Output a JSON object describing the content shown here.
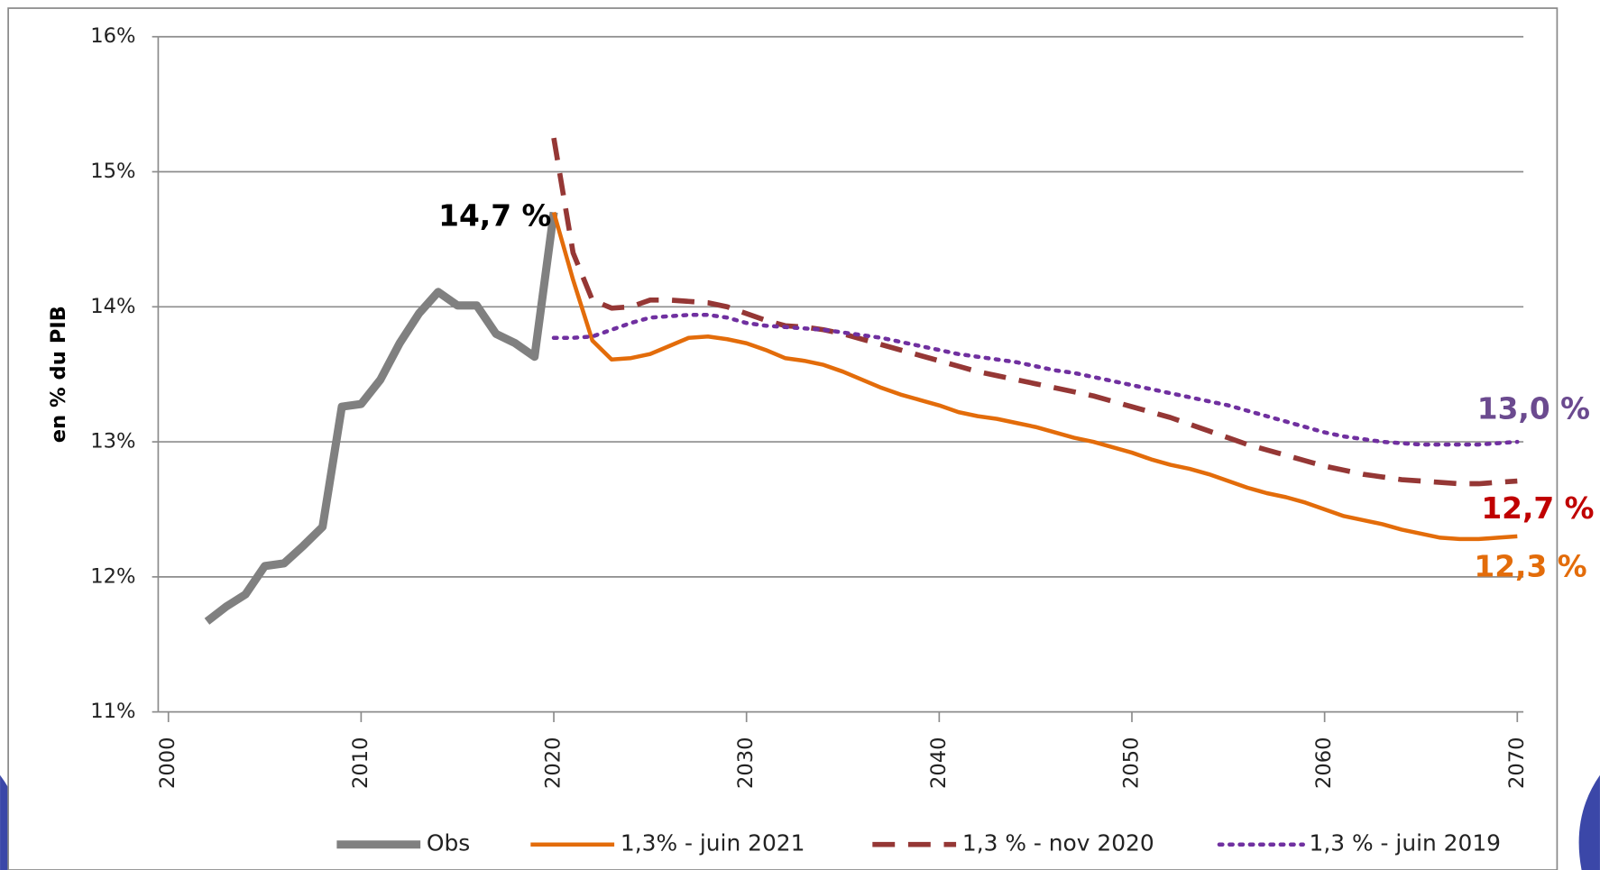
{
  "chart_data": {
    "type": "line",
    "y_label": "en % du PIB",
    "x": [
      2002,
      2003,
      2004,
      2005,
      2006,
      2007,
      2008,
      2009,
      2010,
      2011,
      2012,
      2013,
      2014,
      2015,
      2016,
      2017,
      2018,
      2019,
      2020,
      2021,
      2022,
      2023,
      2024,
      2025,
      2026,
      2027,
      2028,
      2029,
      2030,
      2031,
      2032,
      2033,
      2034,
      2035,
      2036,
      2037,
      2038,
      2039,
      2040,
      2041,
      2042,
      2043,
      2044,
      2045,
      2046,
      2047,
      2048,
      2049,
      2050,
      2051,
      2052,
      2053,
      2054,
      2055,
      2056,
      2057,
      2058,
      2059,
      2060,
      2061,
      2062,
      2063,
      2064,
      2065,
      2066,
      2067,
      2068,
      2069,
      2070
    ],
    "series": [
      {
        "name": "Obs",
        "color": "#808080",
        "dash": "solid",
        "values": [
          11.67,
          11.78,
          11.87,
          12.08,
          12.1,
          12.23,
          12.37,
          13.26,
          13.28,
          13.46,
          13.73,
          13.95,
          14.11,
          14.01,
          14.01,
          13.8,
          13.73,
          13.63,
          14.7,
          null,
          null,
          null,
          null,
          null,
          null,
          null,
          null,
          null,
          null,
          null,
          null,
          null,
          null,
          null,
          null,
          null,
          null,
          null,
          null,
          null,
          null,
          null,
          null,
          null,
          null,
          null,
          null,
          null,
          null,
          null,
          null,
          null,
          null,
          null,
          null,
          null,
          null,
          null,
          null,
          null,
          null,
          null,
          null,
          null,
          null,
          null,
          null,
          null,
          null
        ]
      },
      {
        "name": "1,3% - juin 2021",
        "color": "#e36c0a",
        "dash": "solid",
        "values": [
          null,
          null,
          null,
          null,
          null,
          null,
          null,
          null,
          null,
          null,
          null,
          null,
          null,
          null,
          null,
          null,
          null,
          null,
          14.7,
          14.2,
          13.75,
          13.61,
          13.62,
          13.65,
          13.71,
          13.77,
          13.78,
          13.76,
          13.73,
          13.68,
          13.62,
          13.6,
          13.57,
          13.52,
          13.46,
          13.4,
          13.35,
          13.31,
          13.27,
          13.22,
          13.19,
          13.17,
          13.14,
          13.11,
          13.07,
          13.03,
          13.0,
          12.96,
          12.92,
          12.87,
          12.83,
          12.8,
          12.76,
          12.71,
          12.66,
          12.62,
          12.59,
          12.55,
          12.5,
          12.45,
          12.42,
          12.39,
          12.35,
          12.32,
          12.29,
          12.28,
          12.28,
          12.29,
          12.3
        ]
      },
      {
        "name": "1,3 % - nov 2020",
        "color": "#953735",
        "dash": "dashed",
        "values": [
          null,
          null,
          null,
          null,
          null,
          null,
          null,
          null,
          null,
          null,
          null,
          null,
          null,
          null,
          null,
          null,
          null,
          null,
          15.25,
          14.4,
          14.05,
          13.99,
          14.0,
          14.05,
          14.05,
          14.04,
          14.03,
          14.0,
          13.95,
          13.9,
          13.86,
          13.85,
          13.83,
          13.8,
          13.76,
          13.72,
          13.68,
          13.64,
          13.6,
          13.56,
          13.52,
          13.49,
          13.46,
          13.43,
          13.4,
          13.37,
          13.34,
          13.3,
          13.26,
          13.22,
          13.18,
          13.13,
          13.08,
          13.03,
          12.98,
          12.94,
          12.9,
          12.86,
          12.82,
          12.79,
          12.76,
          12.74,
          12.72,
          12.71,
          12.7,
          12.69,
          12.69,
          12.7,
          12.71
        ]
      },
      {
        "name": "1,3 % - juin 2019",
        "color": "#7030a0",
        "dash": "dotted",
        "values": [
          null,
          null,
          null,
          null,
          null,
          null,
          null,
          null,
          null,
          null,
          null,
          null,
          null,
          null,
          null,
          null,
          null,
          null,
          13.77,
          13.77,
          13.78,
          13.83,
          13.88,
          13.92,
          13.93,
          13.94,
          13.94,
          13.92,
          13.88,
          13.86,
          13.85,
          13.84,
          13.83,
          13.81,
          13.79,
          13.77,
          13.74,
          13.71,
          13.68,
          13.65,
          13.63,
          13.61,
          13.59,
          13.56,
          13.53,
          13.51,
          13.48,
          13.45,
          13.42,
          13.39,
          13.36,
          13.33,
          13.3,
          13.27,
          13.23,
          13.19,
          13.15,
          13.11,
          13.07,
          13.04,
          13.02,
          13.0,
          12.99,
          12.98,
          12.98,
          12.98,
          12.98,
          12.99,
          13.0
        ]
      }
    ],
    "xlim": [
      2000,
      2070
    ],
    "xticks": [
      2000,
      2010,
      2020,
      2030,
      2040,
      2050,
      2060,
      2070
    ],
    "ylim": [
      11,
      16
    ],
    "yticks": [
      {
        "value": 11,
        "label": "11%"
      },
      {
        "value": 12,
        "label": "12%"
      },
      {
        "value": 13,
        "label": "13%"
      },
      {
        "value": 14,
        "label": "14%"
      },
      {
        "value": 15,
        "label": "15%"
      },
      {
        "value": 16,
        "label": "16%"
      }
    ],
    "grid": true,
    "legend": "bottom",
    "annotations": [
      {
        "text": "14,7 %",
        "color": "#000000"
      },
      {
        "text": "13,0 %",
        "color": "#6b4a8f"
      },
      {
        "text": "12,7 %",
        "color": "#c00000"
      },
      {
        "text": "12,3 %",
        "color": "#e36c0a"
      }
    ]
  }
}
